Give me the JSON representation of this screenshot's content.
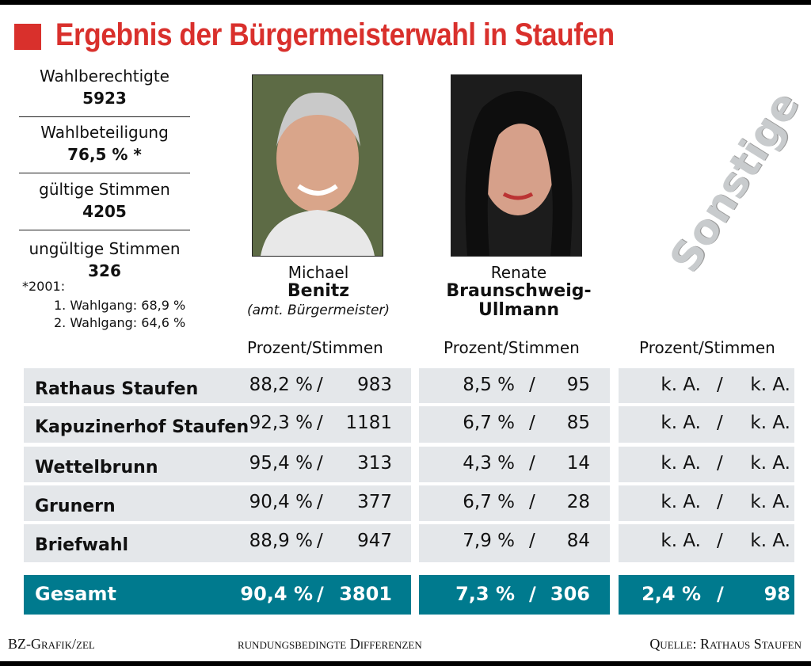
{
  "title": "Ergebnis der Bürgermeisterwahl in Staufen",
  "colors": {
    "title_red": "#d9302c",
    "total_teal": "#007a8e",
    "row_gray": "#e4e7ea"
  },
  "stats": [
    {
      "label": "Wahlberechtigte",
      "value": "5923"
    },
    {
      "label": "Wahlbeteiligung",
      "value": "76,5 % *"
    },
    {
      "label": "gültige Stimmen",
      "value": "4205"
    },
    {
      "label": "ungültige Stimmen",
      "value": "326"
    }
  ],
  "footnote": {
    "head": "*2001:",
    "lines": [
      "1. Wahlgang: 68,9 %",
      "2. Wahlgang: 64,6 %"
    ]
  },
  "candidates": [
    {
      "first": "Michael",
      "last": "Benitz",
      "role": "(amt. Bürgermeister)",
      "photo": "portrait-photo"
    },
    {
      "first": "Renate",
      "last": "Braunschweig-",
      "last2": "Ullmann",
      "photo": "portrait-photo"
    }
  ],
  "others_label": "Sonstige",
  "column_header": "Prozent/Stimmen",
  "chart_data": {
    "type": "table",
    "title": "Ergebnis der Bürgermeisterwahl in Staufen",
    "columns": [
      "Benitz",
      "Braunschweig-Ullmann",
      "Sonstige"
    ],
    "rows": [
      {
        "label": "Rathaus Staufen",
        "cells": [
          {
            "pct": "88,2 %",
            "votes": "983"
          },
          {
            "pct": "8,5 %",
            "votes": "95"
          },
          {
            "pct": "k. A.",
            "votes": "k. A."
          }
        ]
      },
      {
        "label": "Kapuzinerhof Staufen",
        "cells": [
          {
            "pct": "92,3 %",
            "votes": "1181"
          },
          {
            "pct": "6,7 %",
            "votes": "85"
          },
          {
            "pct": "k. A.",
            "votes": "k. A."
          }
        ]
      },
      {
        "label": "Wettelbrunn",
        "cells": [
          {
            "pct": "95,4 %",
            "votes": "313"
          },
          {
            "pct": "4,3 %",
            "votes": "14"
          },
          {
            "pct": "k. A.",
            "votes": "k. A."
          }
        ]
      },
      {
        "label": "Grunern",
        "cells": [
          {
            "pct": "90,4 %",
            "votes": "377"
          },
          {
            "pct": "6,7 %",
            "votes": "28"
          },
          {
            "pct": "k. A.",
            "votes": "k. A."
          }
        ]
      },
      {
        "label": "Briefwahl",
        "cells": [
          {
            "pct": "88,9 %",
            "votes": "947"
          },
          {
            "pct": "7,9 %",
            "votes": "84"
          },
          {
            "pct": "k. A.",
            "votes": "k. A."
          }
        ]
      }
    ],
    "total": {
      "label": "Gesamt",
      "cells": [
        {
          "pct": "90,4 %",
          "votes": "3801"
        },
        {
          "pct": "7,3 %",
          "votes": "306"
        },
        {
          "pct": "2,4 %",
          "votes": "98"
        }
      ]
    }
  },
  "footer": {
    "left": "BZ-Grafik/zel",
    "center": "rundungsbedingte Differenzen",
    "right": "Quelle: Rathaus Staufen"
  }
}
